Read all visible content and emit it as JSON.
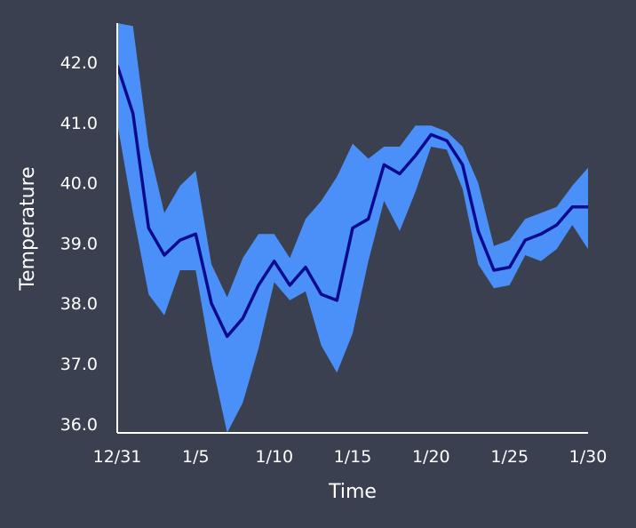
{
  "chart_data": {
    "type": "line",
    "title": "",
    "xlabel": "Time",
    "ylabel": "Temperature",
    "x_ticks": [
      "12/31",
      "1/5",
      "1/10",
      "1/15",
      "1/20",
      "1/25",
      "1/30"
    ],
    "y_ticks": [
      "36.0",
      "37.0",
      "38.0",
      "39.0",
      "40.0",
      "41.0",
      "42.0"
    ],
    "ylim": [
      35.85,
      42.65
    ],
    "grid": false,
    "legend": "none",
    "colors": {
      "line": "#0a0a8c",
      "band": "#4a90f8",
      "background": "#3a4050",
      "axis": "#ffffff"
    },
    "series": [
      {
        "role": "mean",
        "x": [
          "12/31",
          "1/1",
          "1/2",
          "1/3",
          "1/4",
          "1/5",
          "1/6",
          "1/7",
          "1/8",
          "1/9",
          "1/10",
          "1/11",
          "1/12",
          "1/13",
          "1/14",
          "1/15",
          "1/16",
          "1/17",
          "1/18",
          "1/19",
          "1/20",
          "1/21",
          "1/22",
          "1/23",
          "1/24",
          "1/25",
          "1/26",
          "1/27",
          "1/28",
          "1/29",
          "1/30"
        ],
        "values": [
          41.95,
          41.15,
          39.25,
          38.8,
          39.05,
          39.15,
          38.0,
          37.45,
          37.75,
          38.3,
          38.7,
          38.3,
          38.6,
          38.15,
          38.05,
          39.25,
          39.4,
          40.3,
          40.15,
          40.45,
          40.8,
          40.7,
          40.3,
          39.2,
          38.55,
          38.6,
          39.05,
          39.15,
          39.3,
          39.6,
          39.6
        ]
      },
      {
        "role": "band-upper",
        "values": [
          42.65,
          42.6,
          40.6,
          39.5,
          39.95,
          40.2,
          38.65,
          38.1,
          38.75,
          39.15,
          39.15,
          38.75,
          39.4,
          39.7,
          40.1,
          40.65,
          40.4,
          40.6,
          40.6,
          40.95,
          40.95,
          40.85,
          40.6,
          40.0,
          38.95,
          39.05,
          39.4,
          39.5,
          39.6,
          39.95,
          40.25
        ]
      },
      {
        "role": "band-lower",
        "values": [
          41.0,
          39.5,
          38.15,
          37.8,
          38.55,
          38.55,
          37.05,
          35.85,
          36.35,
          37.25,
          38.35,
          38.05,
          38.2,
          37.3,
          36.85,
          37.5,
          38.7,
          39.7,
          39.2,
          39.85,
          40.6,
          40.55,
          39.9,
          38.65,
          38.25,
          38.3,
          38.8,
          38.7,
          38.9,
          39.3,
          38.9
        ]
      }
    ]
  }
}
